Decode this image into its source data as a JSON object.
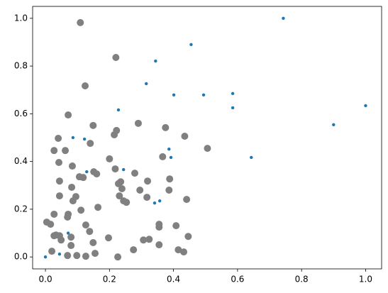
{
  "chart_data": {
    "type": "scatter",
    "xlim": [
      -0.04,
      1.05
    ],
    "ylim": [
      -0.05,
      1.05
    ],
    "xticks": [
      {
        "value": 0,
        "label": "0.0"
      },
      0.2,
      0.4,
      0.6,
      0.8,
      {
        "value": 1,
        "label": "1.0"
      }
    ],
    "yticks": [
      {
        "value": 0,
        "label": "0.0"
      },
      0.2,
      0.4,
      0.6,
      0.8,
      {
        "value": 1,
        "label": "1.0"
      }
    ],
    "grid": false,
    "series": [
      {
        "color": "#808080",
        "x": [
          0.109,
          0.22,
          0.124,
          0.071,
          0.149,
          0.222,
          0.215,
          0.29,
          0.375,
          0.435,
          0.506,
          0.04,
          0.14,
          0.027,
          0.062,
          0.2,
          0.042,
          0.084,
          0.366,
          0.218,
          0.151,
          0.16,
          0.279,
          0.106,
          0.118,
          0.044,
          0.235,
          0.228,
          0.319,
          0.388,
          0.082,
          0.239,
          0.295,
          0.386,
          0.044,
          0.095,
          0.231,
          0.317,
          0.086,
          0.244,
          0.253,
          0.441,
          0.164,
          0.111,
          0.027,
          0.071,
          0.069,
          0.004,
          0.016,
          0.126,
          0.355,
          0.355,
          0.408,
          0.138,
          0.027,
          0.033,
          0.044,
          0.08,
          0.197,
          0.446,
          0.049,
          0.306,
          0.324,
          0.149,
          0.355,
          0.08,
          0.275,
          0.415,
          0.432,
          0.02,
          0.155,
          0.069,
          0.098,
          0.126,
          0.226
        ],
        "y": [
          0.982,
          0.836,
          0.717,
          0.595,
          0.551,
          0.53,
          0.512,
          0.56,
          0.542,
          0.506,
          0.455,
          0.497,
          0.476,
          0.446,
          0.446,
          0.411,
          0.396,
          0.381,
          0.42,
          0.369,
          0.357,
          0.348,
          0.351,
          0.336,
          0.333,
          0.318,
          0.315,
          0.307,
          0.318,
          0.327,
          0.292,
          0.286,
          0.28,
          0.28,
          0.256,
          0.253,
          0.256,
          0.25,
          0.235,
          0.235,
          0.229,
          0.241,
          0.208,
          0.196,
          0.179,
          0.179,
          0.167,
          0.146,
          0.137,
          0.134,
          0.137,
          0.125,
          0.131,
          0.107,
          0.089,
          0.092,
          0.089,
          0.083,
          0.08,
          0.086,
          0.071,
          0.071,
          0.074,
          0.06,
          0.051,
          0.048,
          0.03,
          0.03,
          0.021,
          0.024,
          0.015,
          0.006,
          0.006,
          0.003,
          0.0
        ]
      },
      {
        "color": "#1f77b4",
        "x": [
          0,
          0.044,
          0.071,
          0.086,
          0.122,
          0.129,
          0.228,
          0.244,
          0.344,
          0.315,
          0.341,
          0.357,
          0.386,
          0.392,
          0.401,
          0.455,
          0.494,
          0.585,
          0.585,
          0.643,
          0.743,
          0.9,
          1.0
        ],
        "y": [
          0,
          0.012,
          0.1,
          0.5,
          0.494,
          0.357,
          0.616,
          0.366,
          0.821,
          0.726,
          0.226,
          0.235,
          0.452,
          0.417,
          0.679,
          0.89,
          0.679,
          0.685,
          0.625,
          0.417,
          1.0,
          0.554,
          0.634
        ]
      }
    ]
  }
}
